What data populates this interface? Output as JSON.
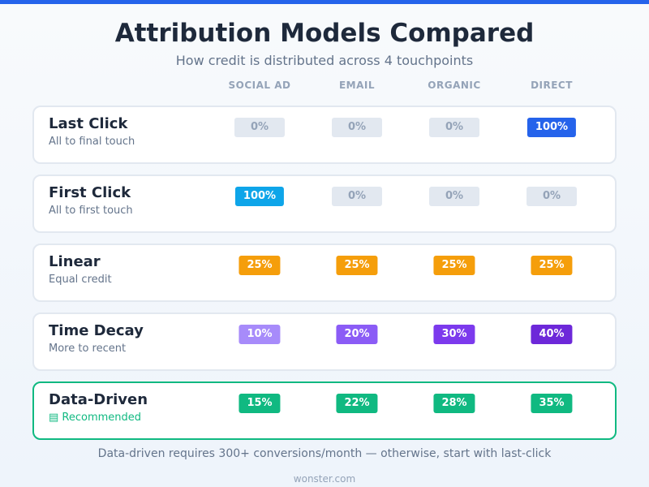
{
  "header": {
    "title": "Attribution Models Compared",
    "subtitle": "How credit is distributed across 4 touchpoints"
  },
  "columns": [
    "SOCIAL AD",
    "EMAIL",
    "ORGANIC",
    "DIRECT"
  ],
  "rows": [
    {
      "name": "Last Click",
      "description": "All to final touch",
      "cells": [
        {
          "text": "0%",
          "color": "#e2e8f0"
        },
        {
          "text": "0%",
          "color": "#e2e8f0"
        },
        {
          "text": "0%",
          "color": "#e2e8f0"
        },
        {
          "text": "100%",
          "color": "#2563eb"
        }
      ]
    },
    {
      "name": "First Click",
      "description": "All to first touch",
      "cells": [
        {
          "text": "100%",
          "color": "#0ea5e9"
        },
        {
          "text": "0%",
          "color": "#e2e8f0"
        },
        {
          "text": "0%",
          "color": "#e2e8f0"
        },
        {
          "text": "0%",
          "color": "#e2e8f0"
        }
      ]
    },
    {
      "name": "Linear",
      "description": "Equal credit",
      "cells": [
        {
          "text": "25%",
          "color": "#f59e0b"
        },
        {
          "text": "25%",
          "color": "#f59e0b"
        },
        {
          "text": "25%",
          "color": "#f59e0b"
        },
        {
          "text": "25%",
          "color": "#f59e0b"
        }
      ]
    },
    {
      "name": "Time Decay",
      "description": "More to recent",
      "cells": [
        {
          "text": "10%",
          "color": "#a78bfa"
        },
        {
          "text": "20%",
          "color": "#8b5cf6"
        },
        {
          "text": "30%",
          "color": "#7c3aed"
        },
        {
          "text": "40%",
          "color": "#6d28d9"
        }
      ]
    },
    {
      "name": "Data-Driven",
      "description": "▤ Recommended",
      "highlight": true,
      "cells": [
        {
          "text": "15%",
          "color": "#10b981"
        },
        {
          "text": "22%",
          "color": "#10b981"
        },
        {
          "text": "28%",
          "color": "#10b981"
        },
        {
          "text": "35%",
          "color": "#10b981"
        }
      ]
    }
  ],
  "footer": {
    "note": "Data-driven requires 300+ conversions/month — otherwise, start with last-click",
    "credit": "wonster.com"
  }
}
